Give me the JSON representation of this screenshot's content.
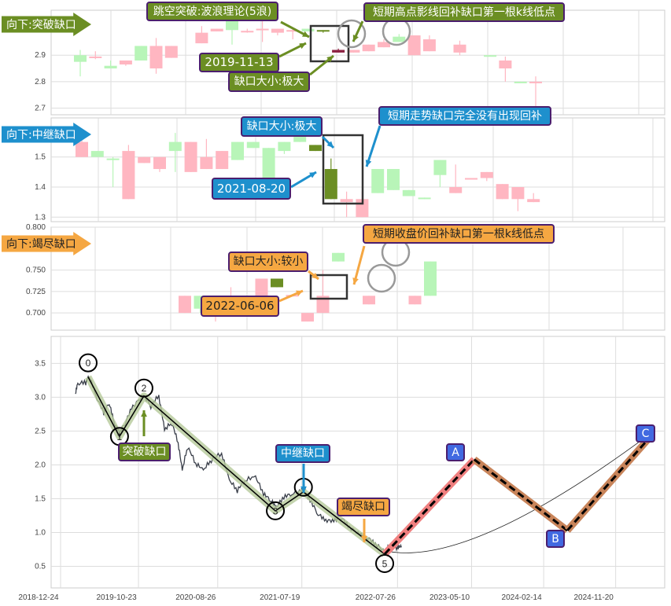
{
  "colors": {
    "up": "#ffb6c1",
    "down": "#b8f5b8",
    "green_label": "#6b8e23",
    "blue_label": "#1e90cd",
    "orange_label": "#f5a742",
    "wave_label": "#4169e1",
    "gap_up_highlight": "#6b8e23",
    "gap_down_highlight": "#8b2040",
    "wave_band": "#b5c99a",
    "ab_band": "#f08080",
    "bc_band": "#c8845a",
    "price_line": "#3a3f4a"
  },
  "panels": [
    {
      "banner": "向下:突破缺口",
      "banner_color": "#6b8e23",
      "y_ticks": [
        2.7,
        2.8,
        2.9
      ],
      "y_range": [
        2.675,
        3.07
      ],
      "candles": [
        [
          0,
          2.9,
          2.92,
          2.82,
          2.875
        ],
        [
          1,
          2.89,
          2.915,
          2.885,
          2.895
        ],
        [
          2,
          2.86,
          2.88,
          2.85,
          2.85
        ],
        [
          3,
          2.865,
          2.88,
          2.86,
          2.88
        ],
        [
          4,
          2.935,
          2.935,
          2.88,
          2.88
        ],
        [
          5,
          2.85,
          2.965,
          2.83,
          2.935
        ],
        [
          6,
          2.89,
          2.935,
          2.89,
          2.935
        ],
        [
          8,
          2.945,
          3.01,
          2.945,
          2.985
        ],
        [
          9,
          2.99,
          3.0,
          2.99,
          3.0
        ],
        [
          10,
          3.04,
          3.04,
          2.94,
          2.995
        ],
        [
          11,
          2.99,
          3.0,
          2.985,
          2.992
        ],
        [
          12,
          3.0,
          3.05,
          2.95,
          3.0
        ],
        [
          13,
          2.985,
          3.0,
          2.975,
          3.0
        ],
        [
          14,
          2.99,
          3.0,
          2.96,
          2.995
        ],
        [
          15,
          3.0,
          3.0,
          2.99,
          2.99
        ]
      ],
      "gap_candles": [
        [
          16,
          2.995,
          2.995,
          2.985,
          2.99,
          "#6b8e23"
        ],
        [
          17,
          2.91,
          2.925,
          2.91,
          2.92,
          "#8b2040"
        ]
      ],
      "after_candles": [
        [
          18,
          2.91,
          2.92,
          2.91,
          2.92
        ],
        [
          19,
          2.915,
          2.94,
          2.915,
          2.94
        ],
        [
          20,
          2.93,
          2.96,
          2.93,
          2.95
        ],
        [
          21,
          2.97,
          2.98,
          2.95,
          2.95
        ],
        [
          22,
          2.9,
          2.975,
          2.9,
          2.975
        ],
        [
          23,
          2.915,
          2.975,
          2.915,
          2.96
        ],
        [
          25,
          2.91,
          2.955,
          2.9,
          2.94
        ],
        [
          27,
          2.9,
          2.9,
          2.895,
          2.895
        ],
        [
          28,
          2.85,
          2.895,
          2.8,
          2.88
        ],
        [
          29,
          2.8,
          2.8,
          2.795,
          2.795
        ],
        [
          30,
          2.795,
          2.82,
          2.7,
          2.8
        ]
      ],
      "annotations": {
        "title": "跳空突破:波浪理论(5浪)",
        "date": "2019-11-13",
        "gap_size": "缺口大小:极大",
        "fill_note": "短期高点影线回补缺口第一根k线低点"
      }
    },
    {
      "banner": "向下:中继缺口",
      "banner_color": "#1e90cd",
      "y_ticks": [
        1.3,
        1.4,
        1.5
      ],
      "y_range": [
        1.285,
        1.63
      ],
      "candles": [
        [
          0,
          1.5,
          1.56,
          1.5,
          1.55
        ],
        [
          1,
          1.52,
          1.52,
          1.5,
          1.5
        ],
        [
          2,
          1.495,
          1.5,
          1.4,
          1.49
        ],
        [
          3,
          1.36,
          1.54,
          1.36,
          1.52
        ],
        [
          4,
          1.48,
          1.5,
          1.48,
          1.5
        ],
        [
          5,
          1.46,
          1.5,
          1.45,
          1.5
        ],
        [
          6,
          1.55,
          1.58,
          1.45,
          1.52
        ],
        [
          7,
          1.45,
          1.55,
          1.45,
          1.55
        ],
        [
          8,
          1.46,
          1.56,
          1.46,
          1.5
        ],
        [
          9,
          1.46,
          1.52,
          1.46,
          1.52
        ],
        [
          10,
          1.55,
          1.55,
          1.49,
          1.49
        ],
        [
          11,
          1.55,
          1.55,
          1.53,
          1.53
        ],
        [
          12,
          1.53,
          1.53,
          1.43,
          1.43
        ],
        [
          13,
          1.55,
          1.55,
          1.51,
          1.52
        ],
        [
          14,
          1.57,
          1.57,
          1.55,
          1.55
        ]
      ],
      "gap_candles": [
        [
          15,
          1.54,
          1.54,
          1.52,
          1.52,
          "#6b8e23"
        ],
        [
          16,
          1.46,
          1.495,
          1.36,
          1.36,
          "#6b8e23"
        ]
      ],
      "after_candles": [
        [
          17,
          1.35,
          1.385,
          1.3,
          1.36
        ],
        [
          18,
          1.3,
          1.385,
          1.3,
          1.36
        ],
        [
          19,
          1.46,
          1.46,
          1.38,
          1.38
        ],
        [
          20,
          1.46,
          1.46,
          1.39,
          1.39
        ],
        [
          21,
          1.39,
          1.39,
          1.37,
          1.37
        ],
        [
          22,
          1.365,
          1.365,
          1.36,
          1.36
        ],
        [
          23,
          1.49,
          1.49,
          1.4,
          1.44
        ],
        [
          24,
          1.38,
          1.475,
          1.38,
          1.4
        ],
        [
          25,
          1.43,
          1.43,
          1.43,
          1.43
        ],
        [
          26,
          1.43,
          1.45,
          1.42,
          1.45
        ],
        [
          27,
          1.36,
          1.41,
          1.36,
          1.41
        ],
        [
          28,
          1.36,
          1.4,
          1.32,
          1.4
        ],
        [
          29,
          1.35,
          1.38,
          1.35,
          1.36
        ]
      ],
      "annotations": {
        "gap_size": "缺口大小:极大",
        "date": "2021-08-20",
        "fill_note": "短期走势缺口完全没有出现回补"
      }
    },
    {
      "banner": "向下:竭尽缺口",
      "banner_color": "#f5a742",
      "y_ticks": [
        0.7,
        0.725,
        0.75,
        0.8
      ],
      "y_range": [
        0.68,
        0.8
      ],
      "candles": [
        [
          0,
          0.7,
          0.72,
          0.7,
          0.72
        ],
        [
          1,
          0.72,
          0.72,
          0.7,
          0.705
        ],
        [
          2,
          0.7,
          0.7,
          0.69,
          0.7
        ],
        [
          3,
          0.72,
          0.73,
          0.7,
          0.72
        ],
        [
          4,
          0.7,
          0.71,
          0.7,
          0.7
        ],
        [
          5,
          0.72,
          0.74,
          0.72,
          0.74
        ]
      ],
      "gap_candles": [
        [
          6,
          0.74,
          0.74,
          0.73,
          0.73,
          "#6b8e23"
        ],
        [
          7,
          0.72,
          0.72,
          0.72,
          0.721,
          "#ffb6c1"
        ]
      ],
      "after_candles": [
        [
          8,
          0.69,
          0.7,
          0.69,
          0.7
        ],
        [
          9,
          0.7,
          0.75,
          0.7,
          0.72
        ],
        [
          10,
          0.77,
          0.77,
          0.76,
          0.76
        ],
        [
          12,
          0.71,
          0.72,
          0.71,
          0.72
        ],
        [
          15,
          0.71,
          0.72,
          0.71,
          0.72
        ],
        [
          16,
          0.76,
          0.76,
          0.72,
          0.72
        ]
      ],
      "annotations": {
        "gap_size": "缺口大小:较小",
        "date": "2022-06-06",
        "fill_note": "短期收盘价回补缺口第一根k线低点"
      }
    }
  ],
  "chart_data": {
    "type": "line",
    "x_ticks": [
      "2018-12-24",
      "2019-10-23",
      "2020-08-26",
      "2021-07-19",
      "2022-07-26",
      "2023-05-10",
      "2024-02-14",
      "2024-11-20"
    ],
    "y_ticks": [
      0.5,
      1.0,
      1.5,
      2.0,
      2.5,
      3.0,
      3.5
    ],
    "ylim": [
      0.18,
      3.9
    ],
    "grid": true,
    "price": [
      [
        "2019-02-20",
        3.05
      ],
      [
        "2019-03-01",
        3.18
      ],
      [
        "2019-04-01",
        3.2
      ],
      [
        "2019-04-15",
        3.3
      ],
      [
        "2019-05-10",
        3.0
      ],
      [
        "2019-06-10",
        2.75
      ],
      [
        "2019-07-01",
        2.9
      ],
      [
        "2019-07-20",
        2.6
      ],
      [
        "2019-08-10",
        2.45
      ],
      [
        "2019-09-01",
        2.6
      ],
      [
        "2019-10-01",
        2.85
      ],
      [
        "2019-11-13",
        3.0
      ],
      [
        "2019-12-10",
        2.85
      ],
      [
        "2020-01-10",
        3.0
      ],
      [
        "2020-02-01",
        2.5
      ],
      [
        "2020-03-01",
        2.6
      ],
      [
        "2020-03-25",
        2.3
      ],
      [
        "2020-04-10",
        1.9
      ],
      [
        "2020-05-01",
        2.25
      ],
      [
        "2020-06-01",
        2.0
      ],
      [
        "2020-07-01",
        1.9
      ],
      [
        "2020-08-01",
        2.05
      ],
      [
        "2020-09-10",
        2.15
      ],
      [
        "2020-10-10",
        1.75
      ],
      [
        "2020-11-10",
        1.6
      ],
      [
        "2020-12-10",
        1.75
      ],
      [
        "2021-01-20",
        1.8
      ],
      [
        "2021-02-20",
        1.55
      ],
      [
        "2021-03-20",
        1.45
      ],
      [
        "2021-04-10",
        1.35
      ],
      [
        "2021-05-10",
        1.5
      ],
      [
        "2021-06-10",
        1.55
      ],
      [
        "2021-07-25",
        1.6
      ],
      [
        "2021-08-20",
        1.45
      ],
      [
        "2021-09-20",
        1.25
      ],
      [
        "2021-10-20",
        1.15
      ],
      [
        "2021-11-20",
        1.15
      ],
      [
        "2021-12-20",
        1.2
      ],
      [
        "2022-01-20",
        1.05
      ],
      [
        "2022-03-01",
        0.95
      ],
      [
        "2022-04-01",
        0.9
      ],
      [
        "2022-05-01",
        0.8
      ],
      [
        "2022-06-06",
        0.7
      ],
      [
        "2022-07-01",
        0.8
      ],
      [
        "2022-07-26",
        0.75
      ],
      [
        "2022-08-10",
        0.78
      ]
    ],
    "wave_points": [
      {
        "label": "0",
        "date": "2019-04-10",
        "value": 3.3
      },
      {
        "label": "1",
        "date": "2019-08-10",
        "value": 2.42
      },
      {
        "label": "2",
        "date": "2019-11-13",
        "value": 3.02
      },
      {
        "label": "3",
        "date": "2021-04-07",
        "value": 1.32
      },
      {
        "label": "4",
        "date": "2021-07-25",
        "value": 1.6
      },
      {
        "label": "5",
        "date": "2022-06-06",
        "value": 0.68
      }
    ],
    "projection_points": [
      {
        "label": "A",
        "date": "2023-05-20",
        "value": 2.08
      },
      {
        "label": "B",
        "date": "2024-05-16",
        "value": 1.03
      },
      {
        "label": "C",
        "date": "2025-03-31",
        "value": 2.4
      }
    ],
    "projection_curve": [
      [
        "2022-06-20",
        0.72
      ],
      [
        "2023-05-10",
        0.5
      ],
      [
        "2025-03-31",
        2.45
      ]
    ],
    "gap_labels": [
      {
        "text": "突破缺口",
        "date": "2019-11-13",
        "color": "#6b8e23"
      },
      {
        "text": "中继缺口",
        "date": "2021-08-20",
        "color": "#1e90cd"
      },
      {
        "text": "竭尽缺口",
        "date": "2022-06-06",
        "color": "#f5a742"
      }
    ]
  }
}
